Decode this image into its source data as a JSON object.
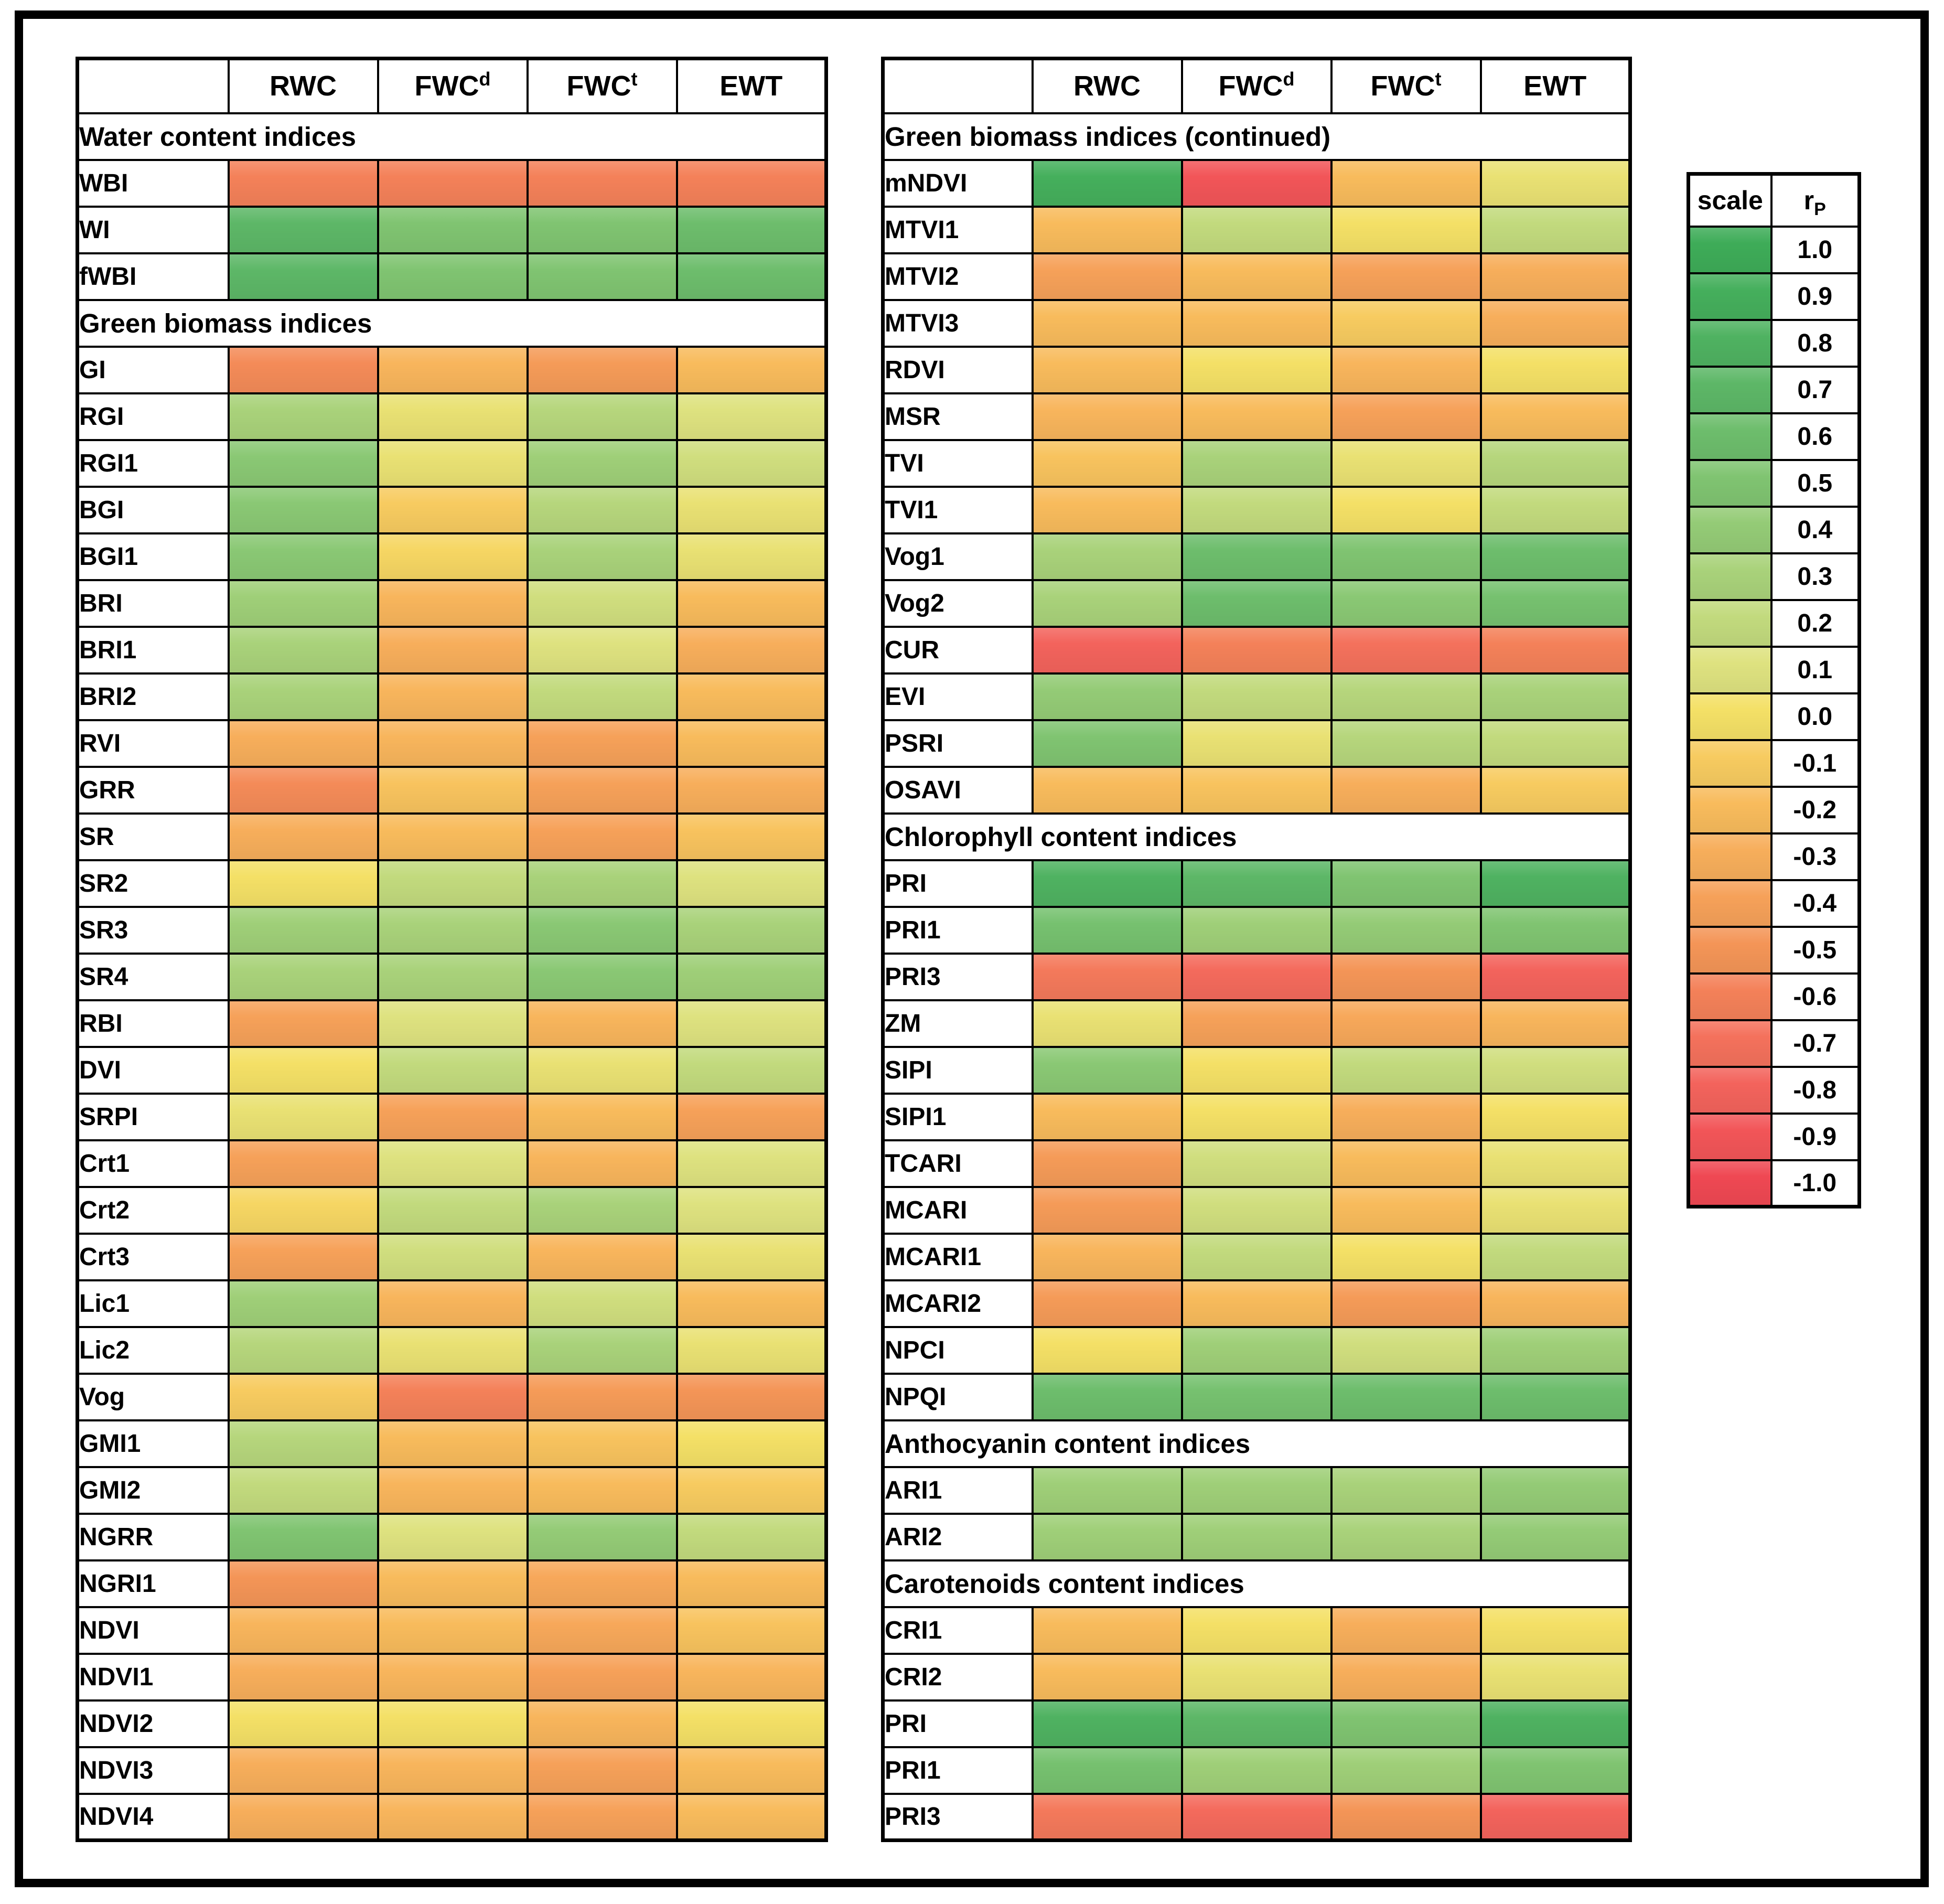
{
  "chart_data": {
    "type": "heatmap",
    "description": "Pearson correlation (rP) heatmap between spectral vegetation indices and water content measures",
    "columns": [
      {
        "text": "RWC",
        "sup": ""
      },
      {
        "text": "FWC",
        "sup": "d"
      },
      {
        "text": "FWC",
        "sup": "t"
      },
      {
        "text": "EWT",
        "sup": ""
      }
    ],
    "value_range": [
      1.0,
      -1.0
    ],
    "colormap": [
      {
        "value": 1.0,
        "color": "#3EAC58"
      },
      {
        "value": 0.9,
        "color": "#45AF5C"
      },
      {
        "value": 0.8,
        "color": "#4FB261"
      },
      {
        "value": 0.7,
        "color": "#5DB767"
      },
      {
        "value": 0.6,
        "color": "#6DBD6C"
      },
      {
        "value": 0.5,
        "color": "#80C471"
      },
      {
        "value": 0.4,
        "color": "#94CB76"
      },
      {
        "value": 0.3,
        "color": "#A9D27A"
      },
      {
        "value": 0.2,
        "color": "#C2DA7D"
      },
      {
        "value": 0.1,
        "color": "#DEE27F"
      },
      {
        "value": 0.0,
        "color": "#F4E066"
      },
      {
        "value": -0.1,
        "color": "#F7CB60"
      },
      {
        "value": -0.2,
        "color": "#F8BB5C"
      },
      {
        "value": -0.3,
        "color": "#F7AE5B"
      },
      {
        "value": -0.4,
        "color": "#F6A159"
      },
      {
        "value": -0.5,
        "color": "#F49557"
      },
      {
        "value": -0.6,
        "color": "#F48159"
      },
      {
        "value": -0.7,
        "color": "#F4715C"
      },
      {
        "value": -0.8,
        "color": "#F3635C"
      },
      {
        "value": -0.9,
        "color": "#F25558"
      },
      {
        "value": -1.0,
        "color": "#EF4853"
      }
    ],
    "legend": {
      "scale_label": "scale",
      "rp_base": "r",
      "rp_sub": "P",
      "steps": [
        {
          "label": "1.0",
          "value": 1.0
        },
        {
          "label": "0.9",
          "value": 0.9
        },
        {
          "label": "0.8",
          "value": 0.8
        },
        {
          "label": "0.7",
          "value": 0.7
        },
        {
          "label": "0.6",
          "value": 0.6
        },
        {
          "label": "0.5",
          "value": 0.5
        },
        {
          "label": "0.4",
          "value": 0.4
        },
        {
          "label": "0.3",
          "value": 0.3
        },
        {
          "label": "0.2",
          "value": 0.2
        },
        {
          "label": "0.1",
          "value": 0.1
        },
        {
          "label": "0.0",
          "value": 0.0
        },
        {
          "label": "-0.1",
          "value": -0.1
        },
        {
          "label": "-0.2",
          "value": -0.2
        },
        {
          "label": "-0.3",
          "value": -0.3
        },
        {
          "label": "-0.4",
          "value": -0.4
        },
        {
          "label": "-0.5",
          "value": -0.5
        },
        {
          "label": "-0.6",
          "value": -0.6
        },
        {
          "label": "-0.7",
          "value": -0.7
        },
        {
          "label": "-0.8",
          "value": -0.8
        },
        {
          "label": "-0.9",
          "value": -0.9
        },
        {
          "label": "-1.0",
          "value": -1.0
        }
      ]
    },
    "panels": {
      "left": {
        "sections": [
          {
            "name": "Water content indices",
            "rows": [
              {
                "label": "WBI",
                "values": [
                  -0.6,
                  -0.6,
                  -0.6,
                  -0.6
                ]
              },
              {
                "label": "WI",
                "values": [
                  0.7,
                  0.5,
                  0.5,
                  0.6
                ]
              },
              {
                "label": "fWBI",
                "values": [
                  0.7,
                  0.5,
                  0.5,
                  0.6
                ]
              }
            ]
          },
          {
            "name": "Green biomass indices",
            "rows": [
              {
                "label": "GI",
                "values": [
                  -0.55,
                  -0.25,
                  -0.45,
                  -0.2
                ]
              },
              {
                "label": "RGI",
                "values": [
                  0.3,
                  0.05,
                  0.25,
                  0.1
                ]
              },
              {
                "label": "RGI1",
                "values": [
                  0.45,
                  0.05,
                  0.35,
                  0.15
                ]
              },
              {
                "label": "BGI",
                "values": [
                  0.45,
                  -0.1,
                  0.25,
                  0.05
                ]
              },
              {
                "label": "BGI1",
                "values": [
                  0.45,
                  -0.05,
                  0.3,
                  0.05
                ]
              },
              {
                "label": "BRI",
                "values": [
                  0.35,
                  -0.25,
                  0.15,
                  -0.2
                ]
              },
              {
                "label": "BRI1",
                "values": [
                  0.3,
                  -0.3,
                  0.1,
                  -0.3
                ]
              },
              {
                "label": "BRI2",
                "values": [
                  0.3,
                  -0.25,
                  0.2,
                  -0.2
                ]
              },
              {
                "label": "RVI",
                "values": [
                  -0.3,
                  -0.25,
                  -0.4,
                  -0.2
                ]
              },
              {
                "label": "GRR",
                "values": [
                  -0.55,
                  -0.15,
                  -0.4,
                  -0.3
                ]
              },
              {
                "label": "SR",
                "values": [
                  -0.3,
                  -0.2,
                  -0.4,
                  -0.15
                ]
              },
              {
                "label": "SR2",
                "values": [
                  0.0,
                  0.2,
                  0.3,
                  0.1
                ]
              },
              {
                "label": "SR3",
                "values": [
                  0.35,
                  0.3,
                  0.45,
                  0.3
                ]
              },
              {
                "label": "SR4",
                "values": [
                  0.3,
                  0.3,
                  0.45,
                  0.35
                ]
              },
              {
                "label": "RBI",
                "values": [
                  -0.4,
                  0.1,
                  -0.25,
                  0.1
                ]
              },
              {
                "label": "DVI",
                "values": [
                  0.0,
                  0.2,
                  0.05,
                  0.2
                ]
              },
              {
                "label": "SRPI",
                "values": [
                  0.05,
                  -0.4,
                  -0.2,
                  -0.4
                ]
              },
              {
                "label": "Crt1",
                "values": [
                  -0.4,
                  0.1,
                  -0.25,
                  0.1
                ]
              },
              {
                "label": "Crt2",
                "values": [
                  -0.05,
                  0.2,
                  0.3,
                  0.1
                ]
              },
              {
                "label": "Crt3",
                "values": [
                  -0.4,
                  0.15,
                  -0.25,
                  0.05
                ]
              },
              {
                "label": "Lic1",
                "values": [
                  0.35,
                  -0.25,
                  0.15,
                  -0.2
                ]
              },
              {
                "label": "Lic2",
                "values": [
                  0.25,
                  0.05,
                  0.3,
                  0.05
                ]
              },
              {
                "label": "Vog",
                "values": [
                  -0.1,
                  -0.6,
                  -0.45,
                  -0.5
                ]
              },
              {
                "label": "GMI1",
                "values": [
                  0.25,
                  -0.2,
                  -0.15,
                  0.0
                ]
              },
              {
                "label": "GMI2",
                "values": [
                  0.2,
                  -0.25,
                  -0.2,
                  -0.1
                ]
              },
              {
                "label": "NGRR",
                "values": [
                  0.5,
                  0.1,
                  0.4,
                  0.2
                ]
              },
              {
                "label": "NGRI1",
                "values": [
                  -0.5,
                  -0.2,
                  -0.35,
                  -0.2
                ]
              },
              {
                "label": "NDVI",
                "values": [
                  -0.25,
                  -0.2,
                  -0.35,
                  -0.15
                ]
              },
              {
                "label": "NDVI1",
                "values": [
                  -0.3,
                  -0.25,
                  -0.4,
                  -0.25
                ]
              },
              {
                "label": "NDVI2",
                "values": [
                  0.0,
                  0.0,
                  -0.25,
                  0.0
                ]
              },
              {
                "label": "NDVI3",
                "values": [
                  -0.3,
                  -0.25,
                  -0.4,
                  -0.2
                ]
              },
              {
                "label": "NDVI4",
                "values": [
                  -0.3,
                  -0.25,
                  -0.4,
                  -0.2
                ]
              }
            ]
          }
        ]
      },
      "right": {
        "sections": [
          {
            "name": "Green biomass indices (continued)",
            "rows": [
              {
                "label": "mNDVI",
                "values": [
                  0.9,
                  -0.9,
                  -0.2,
                  0.05
                ]
              },
              {
                "label": "MTVI1",
                "values": [
                  -0.2,
                  0.2,
                  0.0,
                  0.2
                ]
              },
              {
                "label": "MTVI2",
                "values": [
                  -0.4,
                  -0.2,
                  -0.4,
                  -0.3
                ]
              },
              {
                "label": "MTVI3",
                "values": [
                  -0.2,
                  -0.2,
                  -0.1,
                  -0.3
                ]
              },
              {
                "label": "RDVI",
                "values": [
                  -0.2,
                  0.0,
                  -0.25,
                  0.0
                ]
              },
              {
                "label": "MSR",
                "values": [
                  -0.25,
                  -0.2,
                  -0.4,
                  -0.2
                ]
              },
              {
                "label": "TVI",
                "values": [
                  -0.15,
                  0.3,
                  0.05,
                  0.25
                ]
              },
              {
                "label": "TVI1",
                "values": [
                  -0.2,
                  0.2,
                  0.0,
                  0.2
                ]
              },
              {
                "label": "Vog1",
                "values": [
                  0.3,
                  0.6,
                  0.5,
                  0.6
                ]
              },
              {
                "label": "Vog2",
                "values": [
                  0.3,
                  0.6,
                  0.45,
                  0.55
                ]
              },
              {
                "label": "CUR",
                "values": [
                  -0.8,
                  -0.6,
                  -0.7,
                  -0.6
                ]
              },
              {
                "label": "EVI",
                "values": [
                  0.4,
                  0.2,
                  0.25,
                  0.3
                ]
              },
              {
                "label": "PSRI",
                "values": [
                  0.5,
                  0.05,
                  0.25,
                  0.2
                ]
              },
              {
                "label": "OSAVI",
                "values": [
                  -0.2,
                  -0.15,
                  -0.3,
                  -0.1
                ]
              }
            ]
          },
          {
            "name": "Chlorophyll content indices",
            "rows": [
              {
                "label": "PRI",
                "values": [
                  0.8,
                  0.7,
                  0.5,
                  0.8
                ]
              },
              {
                "label": "PRI1",
                "values": [
                  0.55,
                  0.35,
                  0.4,
                  0.5
                ]
              },
              {
                "label": "PRI3",
                "values": [
                  -0.65,
                  -0.75,
                  -0.5,
                  -0.8
                ]
              },
              {
                "label": "ZM",
                "values": [
                  0.05,
                  -0.4,
                  -0.35,
                  -0.25
                ]
              },
              {
                "label": "SIPI",
                "values": [
                  0.45,
                  0.0,
                  0.2,
                  0.15
                ]
              },
              {
                "label": "SIPI1",
                "values": [
                  -0.2,
                  0.0,
                  -0.3,
                  0.0
                ]
              },
              {
                "label": "TCARI",
                "values": [
                  -0.45,
                  0.15,
                  -0.2,
                  0.05
                ]
              },
              {
                "label": "MCARI",
                "values": [
                  -0.45,
                  0.15,
                  -0.2,
                  0.05
                ]
              },
              {
                "label": "MCARI1",
                "values": [
                  -0.25,
                  0.2,
                  0.0,
                  0.2
                ]
              },
              {
                "label": "MCARI2",
                "values": [
                  -0.45,
                  -0.2,
                  -0.45,
                  -0.25
                ]
              },
              {
                "label": "NPCI",
                "values": [
                  0.0,
                  0.35,
                  0.15,
                  0.35
                ]
              },
              {
                "label": "NPQI",
                "values": [
                  0.6,
                  0.55,
                  0.6,
                  0.6
                ]
              }
            ]
          },
          {
            "name": "Anthocyanin content indices",
            "rows": [
              {
                "label": "ARI1",
                "values": [
                  0.35,
                  0.35,
                  0.3,
                  0.4
                ]
              },
              {
                "label": "ARI2",
                "values": [
                  0.35,
                  0.35,
                  0.3,
                  0.4
                ]
              }
            ]
          },
          {
            "name": "Carotenoids content indices",
            "rows": [
              {
                "label": "CRI1",
                "values": [
                  -0.2,
                  0.0,
                  -0.3,
                  0.0
                ]
              },
              {
                "label": "CRI2",
                "values": [
                  -0.2,
                  0.05,
                  -0.3,
                  0.05
                ]
              },
              {
                "label": "PRI",
                "values": [
                  0.8,
                  0.7,
                  0.5,
                  0.8
                ]
              },
              {
                "label": "PRI1",
                "values": [
                  0.55,
                  0.35,
                  0.35,
                  0.5
                ]
              },
              {
                "label": "PRI3",
                "values": [
                  -0.65,
                  -0.75,
                  -0.5,
                  -0.8
                ]
              }
            ]
          }
        ]
      }
    }
  }
}
